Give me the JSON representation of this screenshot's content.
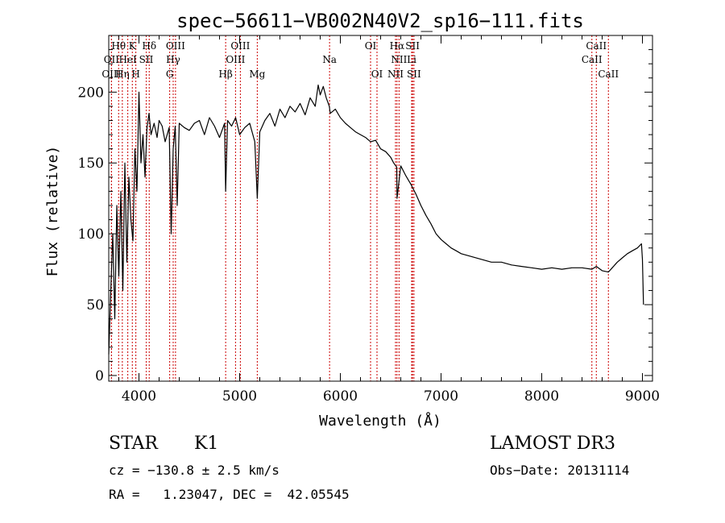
{
  "chart_data": {
    "type": "line",
    "title": "spec−56611−VB002N40V2_sp16−111.fits",
    "xlabel": "Wavelength (Å)",
    "ylabel": "Flux (relative)",
    "xlim": [
      3700,
      9100
    ],
    "ylim": [
      -4,
      240
    ],
    "x_ticks": [
      4000,
      5000,
      6000,
      7000,
      8000,
      9000
    ],
    "y_ticks": [
      0,
      50,
      100,
      150,
      200
    ],
    "series": [
      {
        "name": "flux",
        "x": [
          3700,
          3720,
          3740,
          3760,
          3780,
          3800,
          3820,
          3840,
          3860,
          3880,
          3900,
          3920,
          3940,
          3960,
          3980,
          4000,
          4020,
          4040,
          4060,
          4080,
          4100,
          4120,
          4150,
          4180,
          4200,
          4230,
          4260,
          4300,
          4320,
          4340,
          4360,
          4380,
          4400,
          4450,
          4500,
          4550,
          4600,
          4650,
          4700,
          4750,
          4800,
          4850,
          4861,
          4880,
          4920,
          4960,
          5000,
          5050,
          5100,
          5150,
          5175,
          5200,
          5250,
          5300,
          5350,
          5400,
          5450,
          5500,
          5550,
          5600,
          5650,
          5700,
          5750,
          5780,
          5800,
          5830,
          5860,
          5890,
          5900,
          5950,
          6000,
          6050,
          6100,
          6150,
          6200,
          6250,
          6300,
          6350,
          6400,
          6450,
          6500,
          6530,
          6560,
          6563,
          6600,
          6650,
          6700,
          6750,
          6800,
          6850,
          6900,
          6950,
          7000,
          7050,
          7100,
          7150,
          7200,
          7300,
          7400,
          7500,
          7600,
          7700,
          7800,
          7900,
          8000,
          8100,
          8200,
          8300,
          8400,
          8498,
          8542,
          8600,
          8662,
          8700,
          8750,
          8800,
          8850,
          8900,
          8950,
          8990,
          9000,
          9010
        ],
        "values": [
          15,
          60,
          100,
          40,
          120,
          70,
          130,
          60,
          150,
          80,
          140,
          110,
          95,
          160,
          130,
          200,
          150,
          170,
          140,
          175,
          185,
          170,
          178,
          168,
          180,
          176,
          165,
          175,
          100,
          160,
          176,
          120,
          178,
          175,
          173,
          178,
          180,
          170,
          182,
          176,
          168,
          178,
          130,
          180,
          176,
          182,
          170,
          175,
          178,
          165,
          125,
          172,
          180,
          185,
          176,
          188,
          182,
          190,
          186,
          192,
          184,
          196,
          190,
          205,
          198,
          204,
          196,
          190,
          185,
          188,
          182,
          178,
          175,
          172,
          170,
          168,
          165,
          166,
          160,
          158,
          154,
          150,
          147,
          125,
          148,
          141,
          135,
          128,
          120,
          113,
          107,
          100,
          96,
          93,
          90,
          88,
          86,
          84,
          82,
          80,
          80,
          78,
          77,
          76,
          75,
          76,
          75,
          76,
          76,
          75,
          77,
          74,
          73,
          76,
          80,
          83,
          86,
          88,
          90,
          93,
          82,
          50
        ]
      }
    ],
    "spectral_lines": [
      {
        "label": "Hθ",
        "wl": 3798,
        "row": 1
      },
      {
        "label": "OII",
        "wl": 3727,
        "row": 2
      },
      {
        "label": "OIII",
        "wl": 3727,
        "row": 3
      },
      {
        "label": "K",
        "wl": 3934,
        "row": 1
      },
      {
        "label": "HeI",
        "wl": 3889,
        "row": 2
      },
      {
        "label": "Hη",
        "wl": 3835,
        "row": 3
      },
      {
        "label": "H",
        "wl": 3969,
        "row": 3
      },
      {
        "label": "Hδ",
        "wl": 4102,
        "row": 1
      },
      {
        "label": "SII",
        "wl": 4072,
        "row": 2
      },
      {
        "label": "OIII",
        "wl": 4363,
        "row": 1
      },
      {
        "label": "Hγ",
        "wl": 4340,
        "row": 2
      },
      {
        "label": "G",
        "wl": 4305,
        "row": 3
      },
      {
        "label": "Hβ",
        "wl": 4861,
        "row": 3
      },
      {
        "label": "OIII",
        "wl": 5007,
        "row": 1
      },
      {
        "label": "OIII",
        "wl": 4959,
        "row": 2
      },
      {
        "label": "Mg",
        "wl": 5175,
        "row": 3
      },
      {
        "label": "Na",
        "wl": 5893,
        "row": 2
      },
      {
        "label": "OI",
        "wl": 6300,
        "row": 1
      },
      {
        "label": "OI",
        "wl": 6364,
        "row": 3
      },
      {
        "label": "Hα",
        "wl": 6563,
        "row": 1
      },
      {
        "label": "NII",
        "wl": 6583,
        "row": 2
      },
      {
        "label": "NII",
        "wl": 6548,
        "row": 3
      },
      {
        "label": "SII",
        "wl": 6717,
        "row": 1
      },
      {
        "label": "Li",
        "wl": 6708,
        "row": 2
      },
      {
        "label": "SII",
        "wl": 6731,
        "row": 3
      },
      {
        "label": "CaII",
        "wl": 8542,
        "row": 1
      },
      {
        "label": "CaII",
        "wl": 8498,
        "row": 2
      },
      {
        "label": "CaII",
        "wl": 8662,
        "row": 3
      }
    ]
  },
  "info": {
    "object_class": "STAR",
    "subclass": "K1",
    "survey": "LAMOST DR3",
    "redshift": "cz = −130.8 ± 2.5 km/s",
    "obs_date": "Obs−Date: 20131114",
    "coords": "RA =   1.23047, DEC =  42.05545"
  },
  "colors": {
    "spectrum": "#000000",
    "line_markers": "#cc0000",
    "axes": "#000000"
  }
}
